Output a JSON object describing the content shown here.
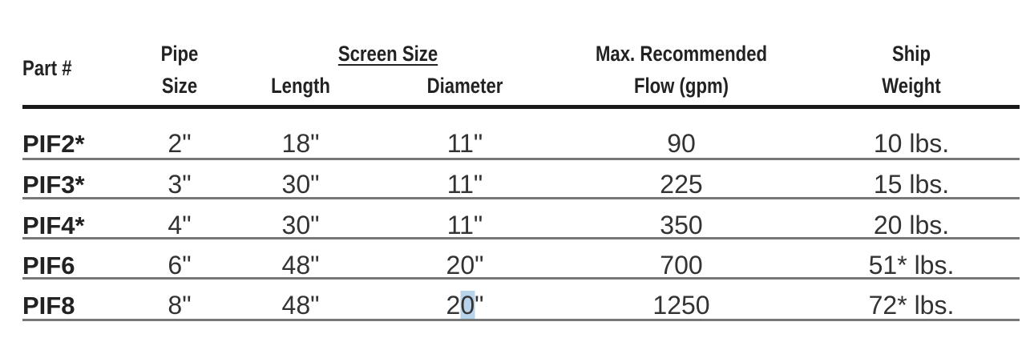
{
  "table": {
    "headers": {
      "part": "Part #",
      "pipe_line1": "Pipe",
      "pipe_line2": "Size",
      "screen_group": "Screen Size",
      "length": "Length",
      "diameter": "Diameter",
      "flow_line1": "Max. Recommended",
      "flow_line2": "Flow (gpm)",
      "weight_line1": "Ship",
      "weight_line2": "Weight"
    },
    "rows": [
      {
        "part": "PIF2*",
        "pipe": "2\"",
        "length": "18\"",
        "diameter": "11\"",
        "flow": "90",
        "weight": "10 lbs."
      },
      {
        "part": "PIF3*",
        "pipe": "3\"",
        "length": "30\"",
        "diameter": "11\"",
        "flow": "225",
        "weight": "15 lbs."
      },
      {
        "part": "PIF4*",
        "pipe": "4\"",
        "length": "30\"",
        "diameter": "11\"",
        "flow": "350",
        "weight": "20 lbs."
      },
      {
        "part": "PIF6",
        "pipe": "6\"",
        "length": "48\"",
        "diameter": "20\"",
        "flow": "700",
        "weight": "51* lbs."
      },
      {
        "part": "PIF8",
        "pipe": "8\"",
        "length": "48\"",
        "diameter_a": "2",
        "diameter_sel": "0",
        "diameter_b": "\"",
        "flow": "1250",
        "weight": "72* lbs."
      }
    ]
  }
}
